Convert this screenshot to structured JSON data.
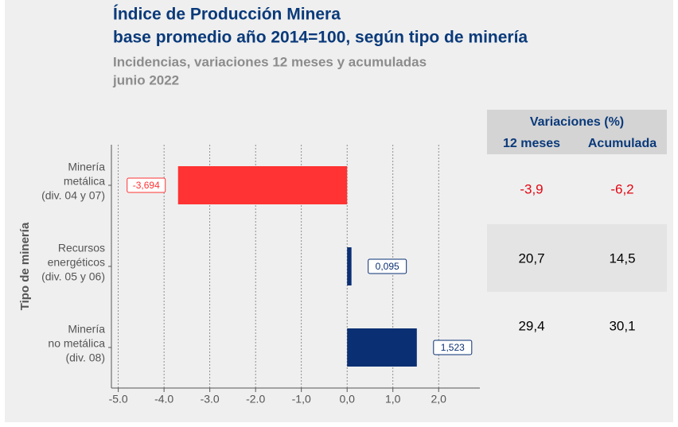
{
  "chart_data": {
    "type": "bar",
    "title": [
      "Índice de Producción Minera",
      "base promedio año 2014=100, según tipo de minería"
    ],
    "subtitle": [
      "Incidencias, variaciones 12 meses y acumuladas",
      "junio 2022"
    ],
    "y_label": "Tipo de minería",
    "categories": [
      [
        "Minería",
        "metálica",
        "(div. 04 y 07)"
      ],
      [
        "Recursos",
        "energéticos",
        "(div. 05 y 06)"
      ],
      [
        "Minería",
        "no metálica",
        "(div. 08)"
      ]
    ],
    "values": [
      -3.694,
      0.095,
      1.523
    ],
    "value_labels": [
      "-3,694",
      "0,095",
      "1,523"
    ],
    "colors": [
      "#ff3333",
      "#0a2f73",
      "#0a2f73"
    ],
    "xlim": [
      -5.15,
      2.9
    ],
    "xticks": [
      {
        "value": -5,
        "label": "-5.0"
      },
      {
        "value": -4,
        "label": "-4.0"
      },
      {
        "value": -3,
        "label": "-3.0"
      },
      {
        "value": -2,
        "label": "-2.0"
      },
      {
        "value": -1,
        "label": "-1,0"
      },
      {
        "value": 0,
        "label": "0,0"
      },
      {
        "value": 1,
        "label": "1,0"
      },
      {
        "value": 2,
        "label": "2,0"
      }
    ],
    "grid": true,
    "table": {
      "header": "Variaciones (%)",
      "columns": [
        "12 meses",
        "Acumulada"
      ],
      "rows": [
        [
          "-3,9",
          "-6,2"
        ],
        [
          "20,7",
          "14,5"
        ],
        [
          "29,4",
          "30,1"
        ]
      ],
      "row_colors": [
        "#e30613",
        "#000000",
        "#000000"
      ]
    }
  }
}
